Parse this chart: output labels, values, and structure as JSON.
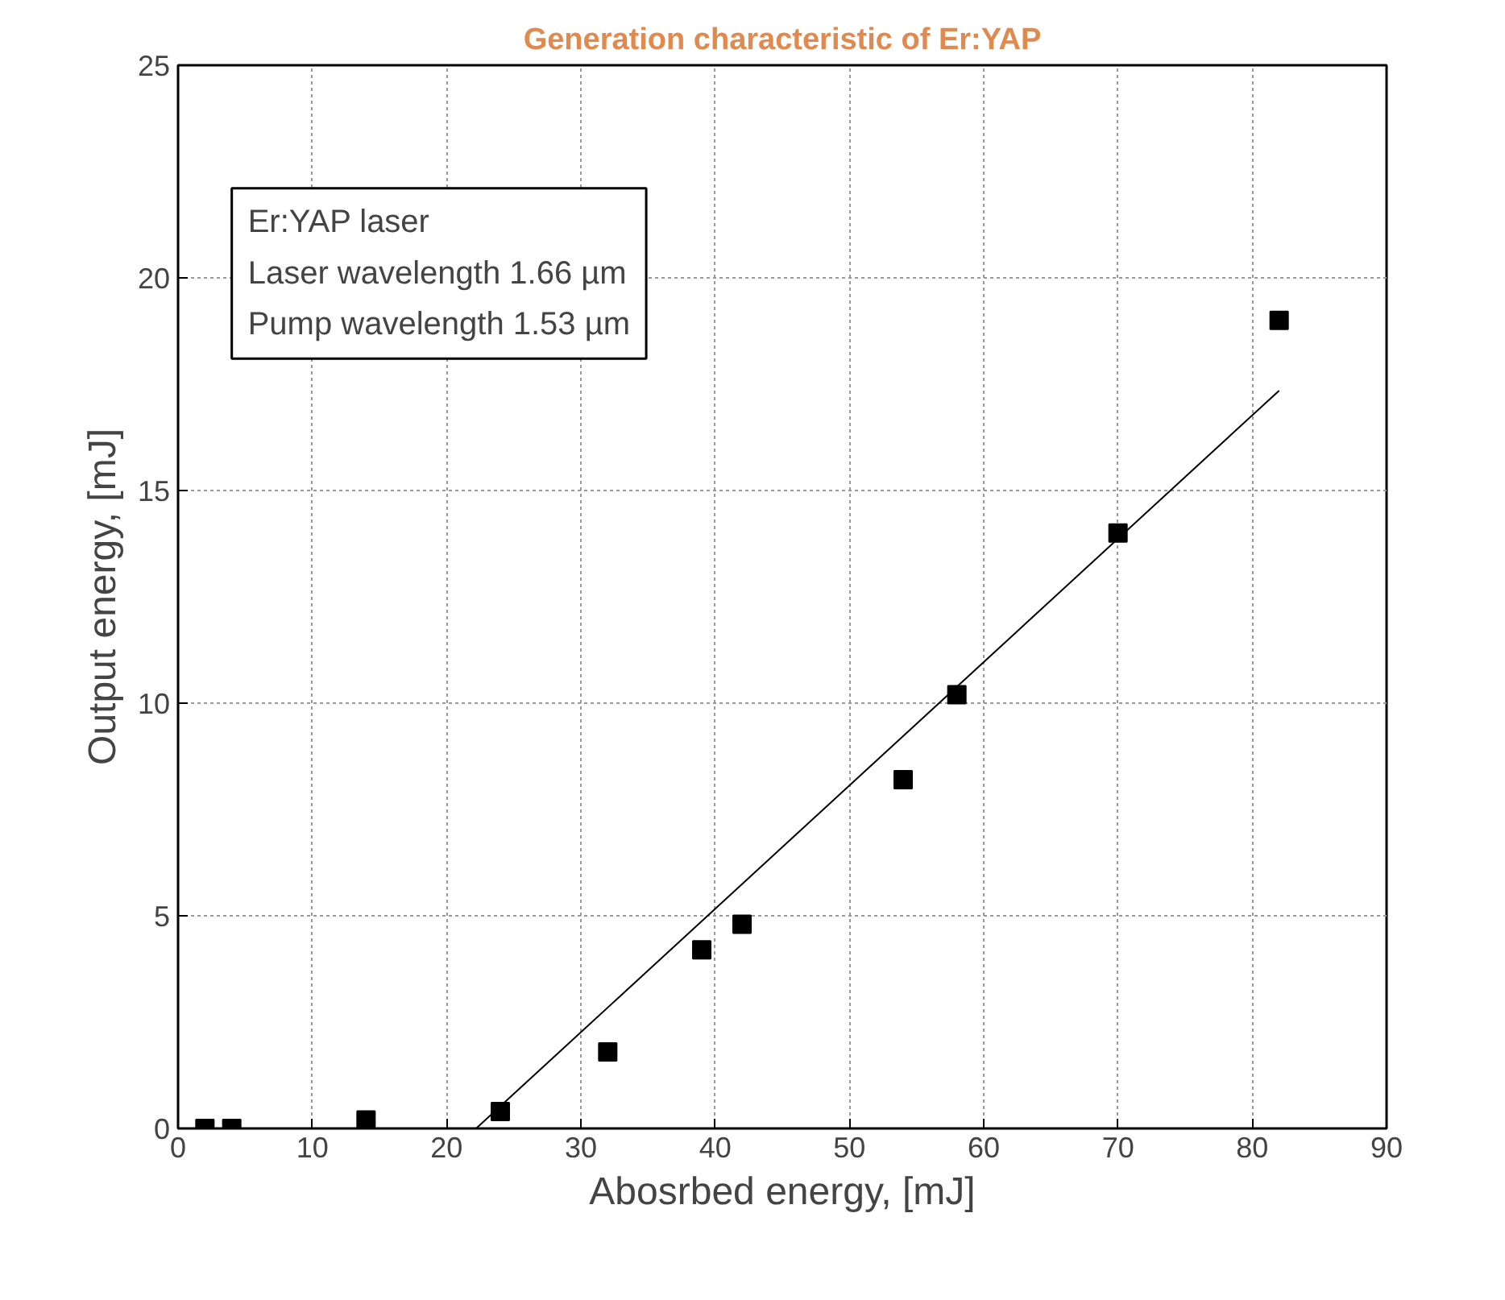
{
  "chart_data": {
    "type": "scatter",
    "title": "Generation characteristic of Er:YAP",
    "xlabel": "Abosrbed energy, [mJ]",
    "ylabel": "Output energy, [mJ]",
    "annotations": [
      "Er:YAP laser",
      "Laser wavelength 1.66 µm",
      "Pump wavelength 1.53 µm"
    ],
    "xlim": [
      0,
      90
    ],
    "ylim": [
      0,
      25
    ],
    "xticks": [
      0,
      10,
      20,
      30,
      40,
      50,
      60,
      70,
      80,
      90
    ],
    "yticks": [
      0,
      5,
      10,
      15,
      20,
      25
    ],
    "grid": true,
    "series": [
      {
        "marker": "square",
        "color": "#000000",
        "x": [
          2,
          4,
          14,
          24,
          32,
          39,
          42,
          54,
          58,
          70,
          82
        ],
        "values": [
          0,
          0,
          0.2,
          0.4,
          1.8,
          4.2,
          4.8,
          8.2,
          10.2,
          14,
          19
        ]
      },
      {
        "type": "line",
        "marker": "none",
        "line_style": "solid",
        "color": "#000000",
        "x": [
          22.2,
          82
        ],
        "values": [
          0,
          17.35
        ]
      }
    ]
  }
}
